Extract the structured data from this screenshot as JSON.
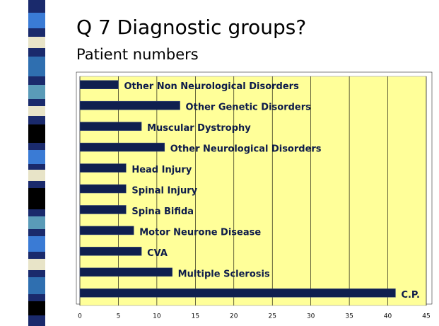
{
  "title": "Q 7 Diagnostic groups?",
  "subtitle": "Patient numbers",
  "chart_data": {
    "type": "barh",
    "categories": [
      "Other Non Neurological Disorders",
      "Other Genetic Disorders",
      "Muscular Dystrophy",
      "Other Neurological Disorders",
      "Head Injury",
      "Spinal Injury",
      "Spina Bifida",
      "Motor Neurone Disease",
      "CVA",
      "Multiple Sclerosis",
      "C.P."
    ],
    "values": [
      5,
      13,
      8,
      11,
      6,
      6,
      6,
      7,
      8,
      12,
      41
    ],
    "color": "#0f1f4f",
    "background": "#ffff99",
    "grid": true,
    "xlim": [
      0,
      45
    ],
    "xticks": [
      0,
      5,
      10,
      15,
      20,
      25,
      30,
      35,
      40,
      45
    ]
  }
}
